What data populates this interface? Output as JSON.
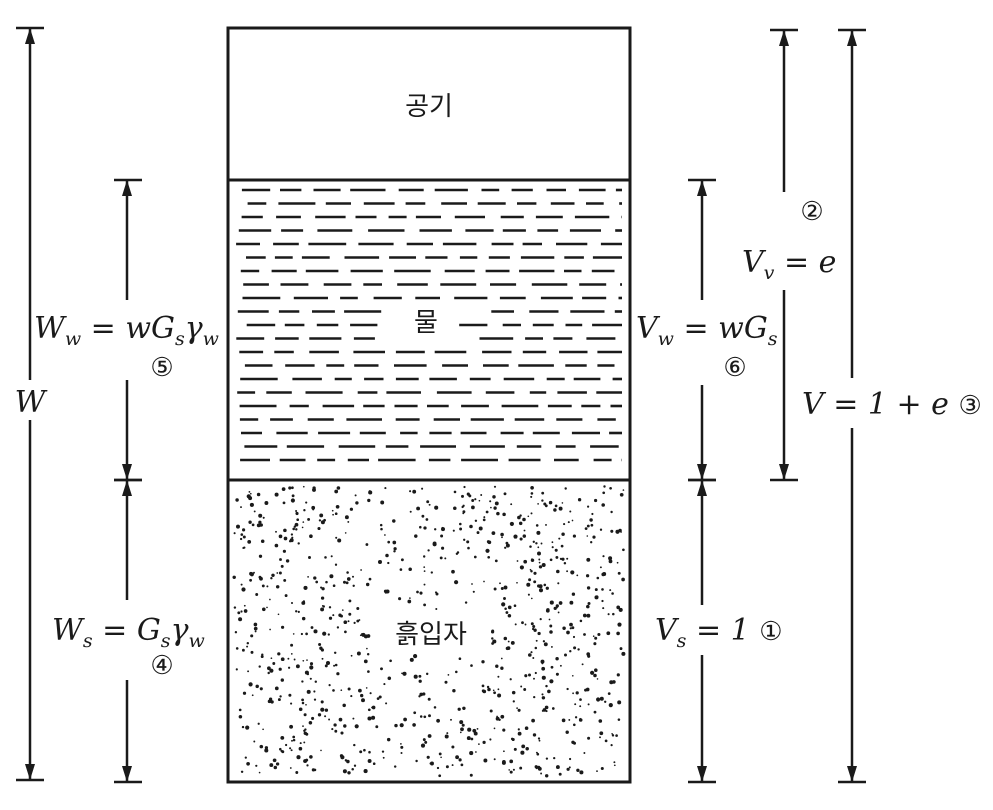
{
  "phases": {
    "air": "공기",
    "water": "물",
    "soil": "흙입자"
  },
  "left": {
    "total": "W",
    "water_weight": "W",
    "water_weight_sub": "w",
    "water_weight_eq": " = wG",
    "water_weight_sub2": "s",
    "water_weight_gamma": "γ",
    "water_weight_sub3": "w",
    "water_weight_step": "⑤",
    "soil_weight": "W",
    "soil_weight_sub": "s",
    "soil_weight_eq": " = G",
    "soil_weight_sub2": "s",
    "soil_weight_gamma": "γ",
    "soil_weight_sub3": "w",
    "soil_weight_step": "④"
  },
  "right": {
    "void_step": "②",
    "void_v": "V",
    "void_sub": "v",
    "void_eq": " = e",
    "water_v": "V",
    "water_sub": "w",
    "water_eq": " = wG",
    "water_sub2": "s",
    "water_step": "⑥",
    "soil_v": "V",
    "soil_sub": "s",
    "soil_eq": " = 1 ",
    "soil_step": "①",
    "total_v": "V",
    "total_eq": " = 1 + e ",
    "total_step": "③"
  }
}
